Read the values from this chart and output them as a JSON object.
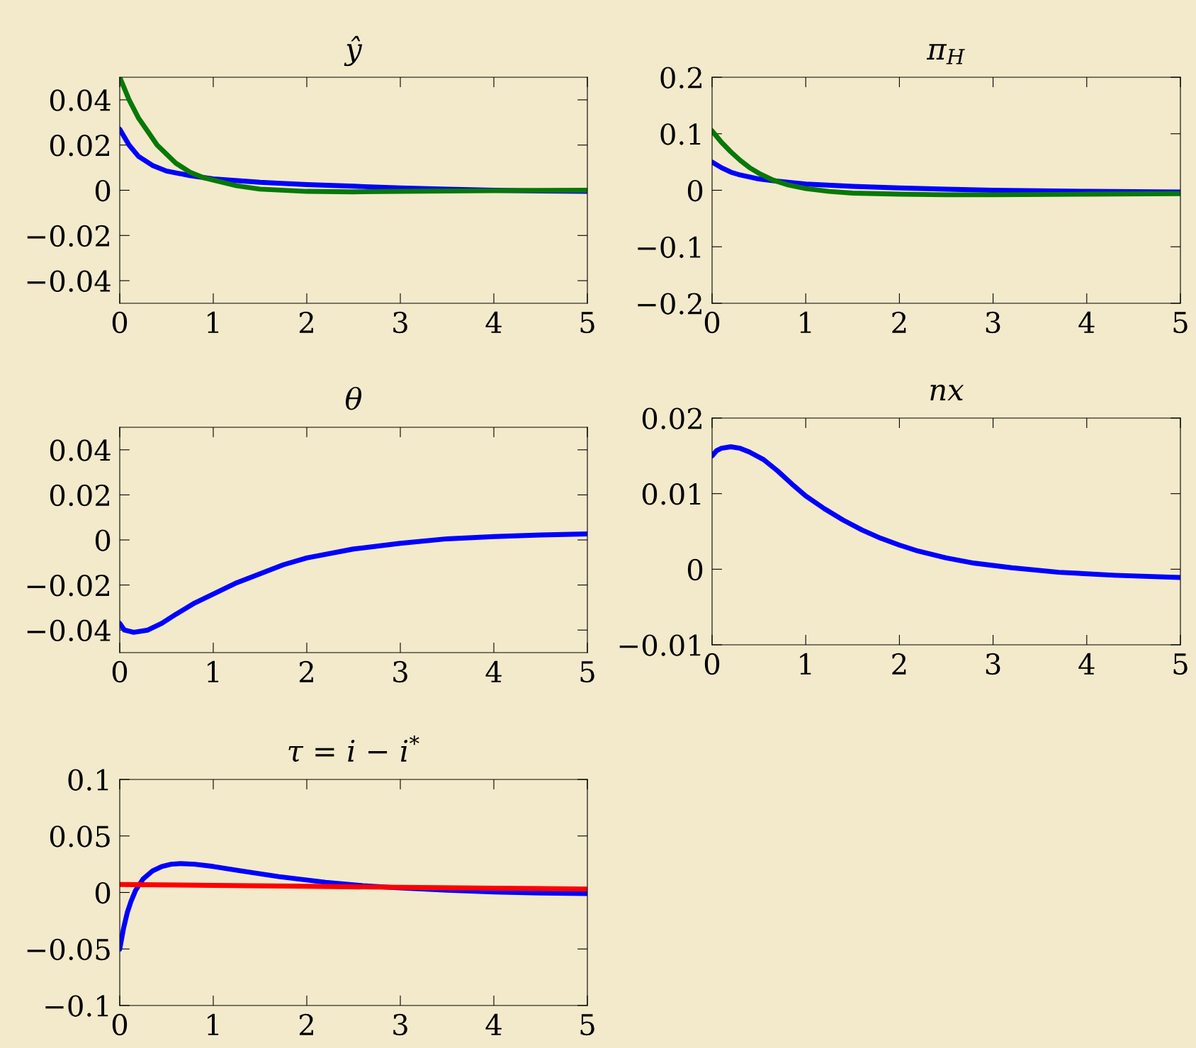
{
  "chart_data": [
    {
      "type": "line",
      "title": "ŷ",
      "xlim": [
        0,
        5
      ],
      "xticks": [
        0,
        1,
        2,
        3,
        4,
        5
      ],
      "ylim": [
        -0.05,
        0.05
      ],
      "yticks": [
        {
          "value": -0.04,
          "label": "−0.04"
        },
        {
          "value": -0.02,
          "label": "−0.02"
        },
        0,
        0.02,
        0.04
      ],
      "grid": false,
      "legend": false,
      "marker": "none",
      "line_style": "solid",
      "series": [
        {
          "color": "#0000ff",
          "x": [
            0,
            0.1,
            0.2,
            0.35,
            0.5,
            0.75,
            1,
            1.5,
            2,
            2.5,
            3,
            3.5,
            4,
            4.5,
            5
          ],
          "values": [
            0.027,
            0.02,
            0.015,
            0.011,
            0.0085,
            0.0065,
            0.005,
            0.0035,
            0.0025,
            0.0018,
            0.001,
            0.0005,
            0.0,
            -0.0003,
            -0.0005
          ]
        },
        {
          "color": "#087808",
          "x": [
            0,
            0.1,
            0.2,
            0.3,
            0.4,
            0.5,
            0.6,
            0.75,
            0.9,
            1,
            1.25,
            1.5,
            2,
            2.5,
            3,
            4,
            5
          ],
          "values": [
            0.05,
            0.04,
            0.032,
            0.026,
            0.02,
            0.016,
            0.012,
            0.008,
            0.0055,
            0.0045,
            0.002,
            0.0005,
            -0.0005,
            -0.0007,
            -0.0005,
            -0.0002,
            0.0
          ]
        }
      ]
    },
    {
      "type": "line",
      "title": "π$_{H}$",
      "xlim": [
        0,
        5
      ],
      "xticks": [
        0,
        1,
        2,
        3,
        4,
        5
      ],
      "ylim": [
        -0.2,
        0.2
      ],
      "yticks": [
        {
          "value": -0.2,
          "label": "−0.2"
        },
        {
          "value": -0.1,
          "label": "−0.1"
        },
        0,
        0.1,
        0.2
      ],
      "grid": false,
      "legend": false,
      "marker": "none",
      "line_style": "solid",
      "series": [
        {
          "color": "#0000ff",
          "x": [
            0,
            0.1,
            0.2,
            0.3,
            0.5,
            0.7,
            1,
            1.5,
            2,
            2.5,
            3,
            4,
            5
          ],
          "values": [
            0.05,
            0.04,
            0.032,
            0.027,
            0.02,
            0.016,
            0.011,
            0.007,
            0.004,
            0.002,
            0.0,
            -0.002,
            -0.003
          ]
        },
        {
          "color": "#087808",
          "x": [
            0,
            0.1,
            0.2,
            0.3,
            0.4,
            0.5,
            0.65,
            0.8,
            1,
            1.25,
            1.5,
            2,
            2.5,
            3,
            4,
            5
          ],
          "values": [
            0.105,
            0.085,
            0.068,
            0.053,
            0.04,
            0.03,
            0.018,
            0.01,
            0.003,
            -0.002,
            -0.005,
            -0.007,
            -0.008,
            -0.008,
            -0.007,
            -0.006
          ]
        }
      ]
    },
    {
      "type": "line",
      "title": "θ",
      "xlim": [
        0,
        5
      ],
      "xticks": [
        0,
        1,
        2,
        3,
        4,
        5
      ],
      "ylim": [
        -0.05,
        0.05
      ],
      "yticks": [
        {
          "value": -0.04,
          "label": "−0.04"
        },
        {
          "value": -0.02,
          "label": "−0.02"
        },
        0,
        0.02,
        0.04
      ],
      "grid": false,
      "legend": false,
      "marker": "none",
      "line_style": "solid",
      "color": "#0000ff",
      "x": [
        0,
        0.05,
        0.15,
        0.3,
        0.45,
        0.6,
        0.8,
        1,
        1.25,
        1.5,
        1.75,
        2,
        2.5,
        3,
        3.5,
        4,
        4.5,
        5
      ],
      "values": [
        -0.037,
        -0.04,
        -0.041,
        -0.04,
        -0.037,
        -0.033,
        -0.028,
        -0.024,
        -0.019,
        -0.015,
        -0.011,
        -0.008,
        -0.004,
        -0.0015,
        0.0005,
        0.0015,
        0.0022,
        0.0027
      ]
    },
    {
      "type": "line",
      "title": "nx",
      "xlim": [
        0,
        5
      ],
      "xticks": [
        0,
        1,
        2,
        3,
        4,
        5
      ],
      "ylim": [
        -0.01,
        0.02
      ],
      "yticks": [
        {
          "value": -0.01,
          "label": "−0.01"
        },
        0,
        0.01,
        0.02
      ],
      "grid": false,
      "legend": false,
      "marker": "none",
      "line_style": "solid",
      "color": "#0000ff",
      "x": [
        0,
        0.05,
        0.1,
        0.2,
        0.3,
        0.4,
        0.55,
        0.7,
        0.85,
        1,
        1.2,
        1.4,
        1.6,
        1.8,
        2,
        2.2,
        2.5,
        2.8,
        3.2,
        3.7,
        4.3,
        5
      ],
      "values": [
        0.015,
        0.0157,
        0.016,
        0.0162,
        0.016,
        0.0155,
        0.0145,
        0.013,
        0.0113,
        0.0097,
        0.008,
        0.0065,
        0.0052,
        0.0041,
        0.0032,
        0.0024,
        0.0015,
        0.0008,
        0.0002,
        -0.0004,
        -0.0008,
        -0.0011
      ]
    },
    {
      "type": "line",
      "title": "τ = i − i$^{*}$",
      "xlim": [
        0,
        5
      ],
      "xticks": [
        0,
        1,
        2,
        3,
        4,
        5
      ],
      "ylim": [
        -0.1,
        0.1
      ],
      "yticks": [
        {
          "value": -0.1,
          "label": "−0.1"
        },
        {
          "value": -0.05,
          "label": "−0.05"
        },
        0,
        0.05,
        0.1
      ],
      "grid": false,
      "legend": false,
      "marker": "none",
      "line_style": "solid",
      "series": [
        {
          "color": "#0000ff",
          "x": [
            0,
            0.04,
            0.08,
            0.12,
            0.17,
            0.25,
            0.35,
            0.45,
            0.55,
            0.65,
            0.8,
            1,
            1.3,
            1.7,
            2.2,
            2.6,
            3,
            3.5,
            4,
            4.5,
            5
          ],
          "values": [
            -0.05,
            -0.032,
            -0.018,
            -0.008,
            0.002,
            0.012,
            0.019,
            0.023,
            0.025,
            0.0255,
            0.025,
            0.023,
            0.019,
            0.014,
            0.009,
            0.006,
            0.004,
            0.002,
            0.0005,
            -0.0005,
            -0.001
          ]
        },
        {
          "color": "#ff0000",
          "x": [
            0,
            1,
            2,
            3,
            4,
            5
          ],
          "values": [
            0.007,
            0.0063,
            0.0055,
            0.0045,
            0.0038,
            0.003
          ]
        }
      ]
    }
  ]
}
